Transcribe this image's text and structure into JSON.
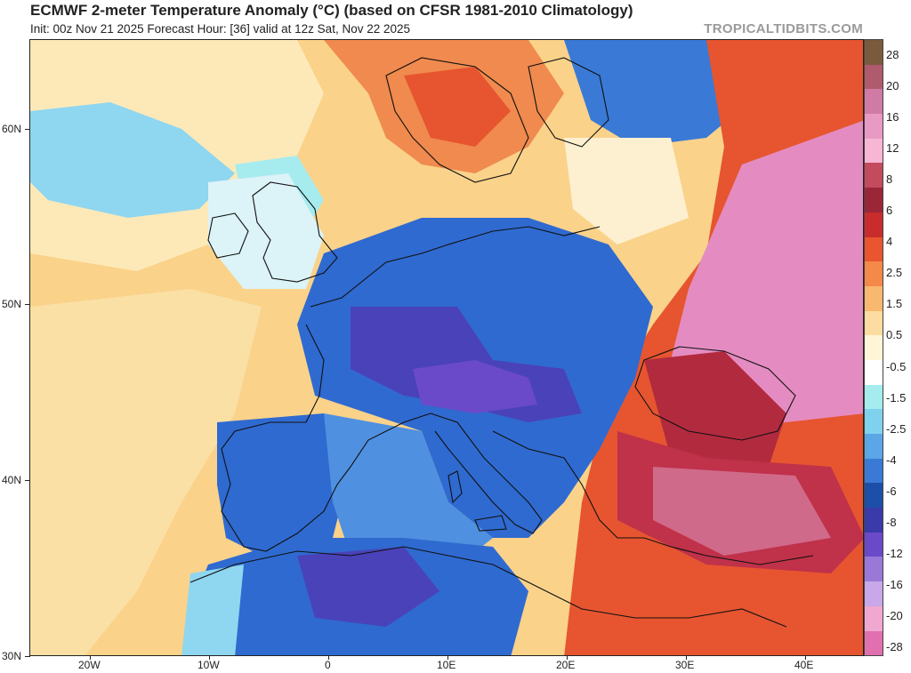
{
  "header": {
    "title": "ECMWF 2-meter Temperature Anomaly (°C) (based on CFSR 1981-2010 Climatology)",
    "subtitle": "Init: 00z Nov 21 2025   Forecast Hour: [36]   valid at 12z Sat, Nov 22 2025",
    "brand": "TROPICALTIDBITS.COM"
  },
  "axes": {
    "lat_labels": [
      "60N",
      "50N",
      "40N",
      "30N"
    ],
    "lon_labels": [
      "20W",
      "10W",
      "0",
      "10E",
      "20E",
      "30E",
      "40E"
    ]
  },
  "colorbar": {
    "labels": [
      "28",
      "20",
      "16",
      "12",
      "8",
      "6",
      "4",
      "2.5",
      "1.5",
      "0.5",
      "-0.5",
      "-1.5",
      "-2.5",
      "-4",
      "-6",
      "-8",
      "-12",
      "-16",
      "-20",
      "-28"
    ],
    "colors": [
      "#7a5a3c",
      "#b05a6e",
      "#d07aa6",
      "#e99ac4",
      "#f6b6d4",
      "#c44a5e",
      "#9a2638",
      "#c92c2c",
      "#e8552e",
      "#f4894a",
      "#f8b870",
      "#fcdca0",
      "#fff6d8",
      "#ffffff",
      "#a6ecef",
      "#7fd2ee",
      "#5aa6e6",
      "#3a7ad6",
      "#1e4fa8",
      "#3a3aa8",
      "#6a4ac8",
      "#9a78d8",
      "#c8a8e8",
      "#f0a8d0",
      "#e070b0"
    ]
  },
  "map_layers": {
    "ocean_base": "#fce0a0",
    "cold_anomaly": "#2f6ad0",
    "strong_cold": "#4a42b8",
    "warm_anomaly": "#e6552f",
    "strong_warm": "#b22a3e",
    "extreme_warm": "#e48cc2",
    "mild": "#fff2d0",
    "cool_mild": "#8fd6f0"
  }
}
